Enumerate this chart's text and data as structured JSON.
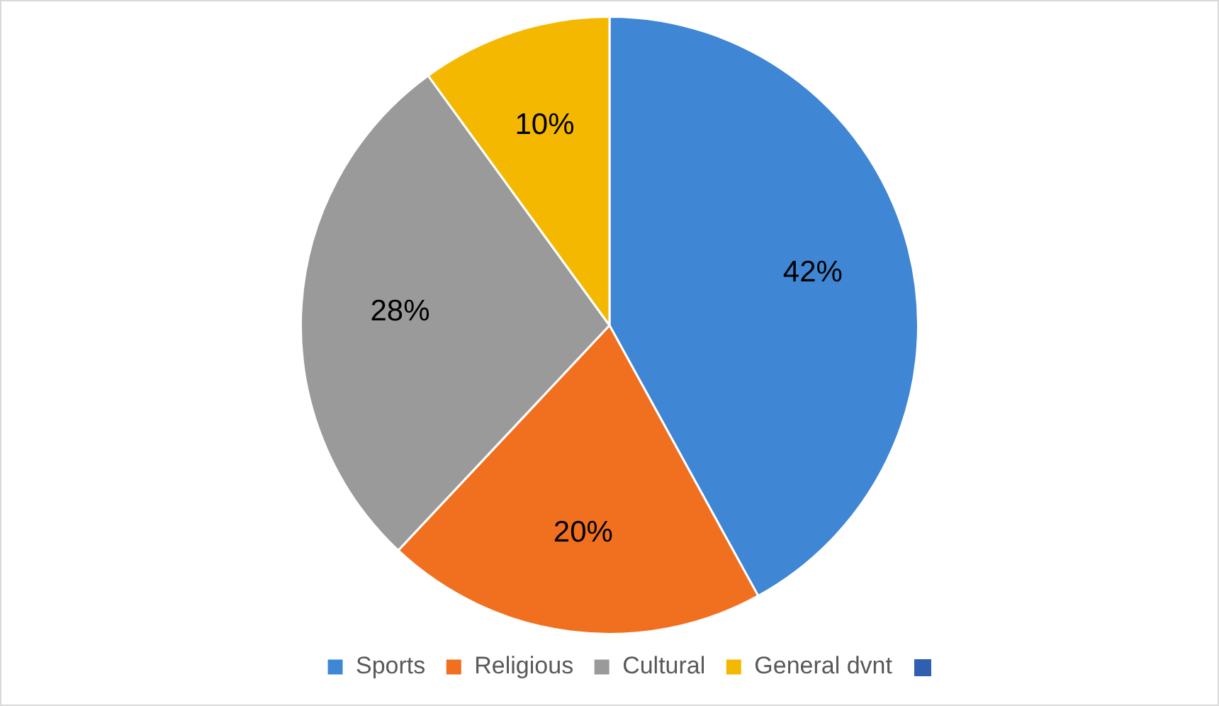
{
  "chart_data": {
    "type": "pie",
    "categories": [
      "Sports",
      "Religious",
      "Cultural",
      "General dvnt"
    ],
    "values": [
      42,
      20,
      28,
      10
    ],
    "colors": [
      "#3f86d4",
      "#f07020",
      "#9a9a9a",
      "#f5b800"
    ],
    "value_labels": [
      "42%",
      "20%",
      "28%",
      "10%"
    ],
    "legend": "bottom"
  }
}
